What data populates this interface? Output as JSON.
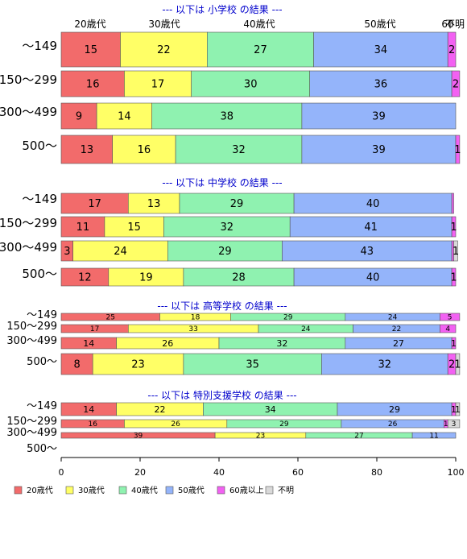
{
  "chart_data": {
    "type": "bar",
    "stacked": true,
    "orientation": "horizontal",
    "xlim": [
      0,
      100
    ],
    "x_ticks": [
      0,
      20,
      40,
      60,
      80,
      100
    ],
    "series": [
      {
        "name": "20歳代",
        "color": "#f26b6b"
      },
      {
        "name": "30歳代",
        "color": "#ffff66"
      },
      {
        "name": "40歳代",
        "color": "#8ff2b0"
      },
      {
        "name": "50歳代",
        "color": "#94b4fa"
      },
      {
        "name": "60歳以上",
        "color": "#f261f2"
      },
      {
        "name": "不明",
        "color": "#d9d9d9"
      }
    ],
    "top_labels": [
      "20歳代",
      "30歳代",
      "40歳代",
      "50歳代",
      "60",
      "不明"
    ],
    "panels": [
      {
        "title": "--- 以下は 小学校 の結果 ---",
        "rows": [
          {
            "label": "～149",
            "values": [
              15,
              22,
              27,
              34,
              2,
              0
            ]
          },
          {
            "label": "150～299",
            "values": [
              16,
              17,
              30,
              36,
              2,
              0
            ]
          },
          {
            "label": "300～499",
            "values": [
              9,
              14,
              38,
              39,
              0,
              0
            ]
          },
          {
            "label": "500～",
            "values": [
              13,
              16,
              32,
              39,
              1,
              0
            ]
          }
        ]
      },
      {
        "title": "--- 以下は 中学校 の結果 ---",
        "rows": [
          {
            "label": "～149",
            "values": [
              17,
              13,
              29,
              40,
              0.5,
              0
            ]
          },
          {
            "label": "150～299",
            "values": [
              11,
              15,
              32,
              41,
              1,
              0
            ]
          },
          {
            "label": "300～499",
            "values": [
              3,
              24,
              29,
              43,
              0.5,
              1
            ]
          },
          {
            "label": "500～",
            "values": [
              12,
              19,
              28,
              40,
              1,
              0
            ]
          }
        ]
      },
      {
        "title": "--- 以下は 高等学校 の結果 ---",
        "rows": [
          {
            "label": "～149",
            "values": [
              25,
              18,
              29,
              24,
              5,
              0
            ]
          },
          {
            "label": "150～299",
            "values": [
              17,
              33,
              24,
              22,
              4,
              0
            ]
          },
          {
            "label": "300～499",
            "values": [
              14,
              26,
              32,
              27,
              1,
              0
            ]
          },
          {
            "label": "500～",
            "values": [
              8,
              23,
              35,
              32,
              2,
              1
            ]
          }
        ]
      },
      {
        "title": "--- 以下は 特別支援学校 の結果 ---",
        "rows": [
          {
            "label": "～149",
            "values": [
              14,
              22,
              34,
              29,
              1,
              1
            ]
          },
          {
            "label": "150～299",
            "values": [
              16,
              26,
              29,
              26,
              1,
              3
            ]
          },
          {
            "label": "300～499",
            "values": [
              39,
              23,
              27,
              11,
              0,
              0
            ]
          },
          {
            "label": "500～",
            "values": [
              0,
              0,
              0,
              0,
              0,
              0
            ]
          }
        ]
      }
    ]
  }
}
